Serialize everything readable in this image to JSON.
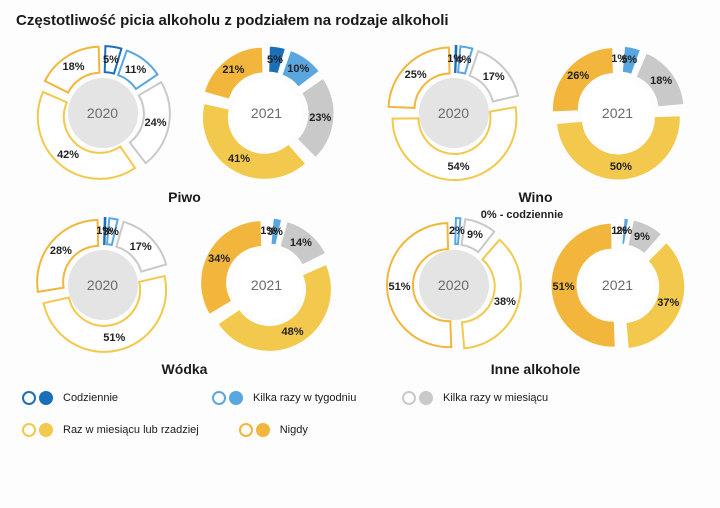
{
  "title": "Częstotliwość picia alkoholu z podziałem na rodzaje alkoholi",
  "colors": {
    "daily": {
      "outline": "#1b6fb8",
      "fill": "#1b6fb8"
    },
    "weekly": {
      "outline": "#5aa7e0",
      "fill": "#5aa7e0"
    },
    "monthly": {
      "outline": "#c9c9c9",
      "fill": "#c9c9c9"
    },
    "rarely": {
      "outline": "#f2c94c",
      "fill": "#f2c94c"
    },
    "never": {
      "outline": "#f2b63c",
      "fill": "#f2b63c"
    }
  },
  "categories": [
    {
      "key": "daily",
      "label": "Codziennie"
    },
    {
      "key": "weekly",
      "label": "Kilka razy w tygodniu"
    },
    {
      "key": "monthly",
      "label": "Kilka razy w miesiącu"
    },
    {
      "key": "rarely",
      "label": "Raz w miesiącu lub rzadziej"
    },
    {
      "key": "never",
      "label": "Nigdy"
    }
  ],
  "donut": {
    "size": 140,
    "outerR": 62,
    "innerR": 36,
    "labelR": 49,
    "gapDeg": 3,
    "explodePx": 5
  },
  "groups": [
    {
      "name": "Piwo",
      "charts": [
        {
          "year": "2020",
          "style": "outline",
          "slices": [
            {
              "key": "daily",
              "value": 5
            },
            {
              "key": "weekly",
              "value": 11
            },
            {
              "key": "monthly",
              "value": 24
            },
            {
              "key": "rarely",
              "value": 42
            },
            {
              "key": "never",
              "value": 18
            }
          ]
        },
        {
          "year": "2021",
          "style": "fill",
          "slices": [
            {
              "key": "daily",
              "value": 5
            },
            {
              "key": "weekly",
              "value": 10
            },
            {
              "key": "monthly",
              "value": 23
            },
            {
              "key": "rarely",
              "value": 41
            },
            {
              "key": "never",
              "value": 21
            }
          ]
        }
      ]
    },
    {
      "name": "Wino",
      "charts": [
        {
          "year": "2020",
          "style": "outline",
          "slices": [
            {
              "key": "daily",
              "value": 1
            },
            {
              "key": "weekly",
              "value": 4
            },
            {
              "key": "monthly",
              "value": 17
            },
            {
              "key": "rarely",
              "value": 54
            },
            {
              "key": "never",
              "value": 25
            }
          ]
        },
        {
          "year": "2021",
          "style": "fill",
          "slices": [
            {
              "key": "daily",
              "value": 1
            },
            {
              "key": "weekly",
              "value": 5
            },
            {
              "key": "monthly",
              "value": 18
            },
            {
              "key": "rarely",
              "value": 50
            },
            {
              "key": "never",
              "value": 26
            }
          ]
        }
      ]
    },
    {
      "name": "Wódka",
      "charts": [
        {
          "year": "2020",
          "style": "outline",
          "slices": [
            {
              "key": "daily",
              "value": 1
            },
            {
              "key": "weekly",
              "value": 3
            },
            {
              "key": "monthly",
              "value": 17
            },
            {
              "key": "rarely",
              "value": 51
            },
            {
              "key": "never",
              "value": 28
            }
          ]
        },
        {
          "year": "2021",
          "style": "fill",
          "slices": [
            {
              "key": "daily",
              "value": 1
            },
            {
              "key": "weekly",
              "value": 3
            },
            {
              "key": "monthly",
              "value": 14
            },
            {
              "key": "rarely",
              "value": 48
            },
            {
              "key": "never",
              "value": 34
            }
          ]
        }
      ]
    },
    {
      "name": "Inne alkohole",
      "note": "0% - codziennie",
      "charts": [
        {
          "year": "2020",
          "style": "outline",
          "slices": [
            {
              "key": "daily",
              "value": 0
            },
            {
              "key": "weekly",
              "value": 2
            },
            {
              "key": "monthly",
              "value": 9
            },
            {
              "key": "rarely",
              "value": 38
            },
            {
              "key": "never",
              "value": 51
            }
          ]
        },
        {
          "year": "2021",
          "style": "fill",
          "slices": [
            {
              "key": "daily",
              "value": 1
            },
            {
              "key": "weekly",
              "value": 2
            },
            {
              "key": "monthly",
              "value": 9
            },
            {
              "key": "rarely",
              "value": 37
            },
            {
              "key": "never",
              "value": 51
            }
          ]
        }
      ]
    }
  ]
}
